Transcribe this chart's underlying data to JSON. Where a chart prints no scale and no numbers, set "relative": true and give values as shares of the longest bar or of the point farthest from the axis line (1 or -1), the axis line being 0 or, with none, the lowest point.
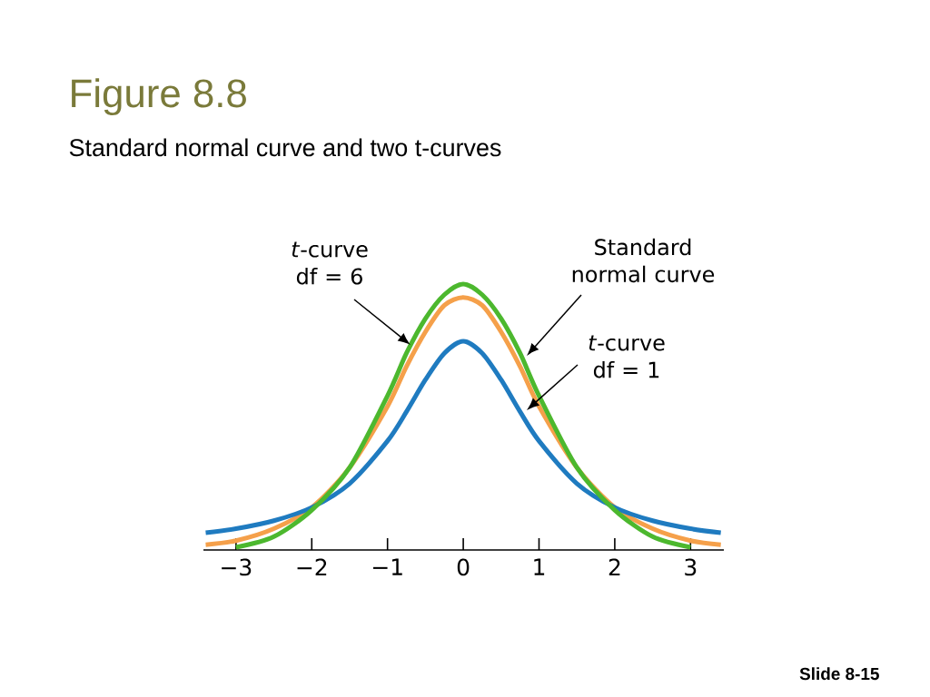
{
  "chart_data": {
    "type": "line",
    "title": "Figure 8.8",
    "subtitle": "Standard normal curve and two t-curves",
    "relative": true,
    "marker": "none",
    "xlim": [
      -3.43,
      3.44
    ],
    "xticks": [
      {
        "value": -3,
        "label": "−3"
      },
      {
        "value": -2,
        "label": "−2"
      },
      {
        "value": -1,
        "label": "−1"
      },
      0,
      1,
      2,
      3
    ],
    "series": [
      {
        "color": "#f5a04a",
        "x": [
          -3.4,
          -3,
          -2.5,
          -2,
          -1.5,
          -1,
          -0.75,
          -0.5,
          -0.25,
          0,
          0.25,
          0.5,
          0.75,
          1,
          1.5,
          2,
          2.5,
          3,
          3.4
        ],
        "values": [
          0.02,
          0.035,
          0.08,
          0.16,
          0.31,
          0.54,
          0.69,
          0.82,
          0.92,
          0.95,
          0.92,
          0.82,
          0.69,
          0.54,
          0.31,
          0.16,
          0.08,
          0.035,
          0.02
        ]
      },
      {
        "color": "#1f7bc0",
        "x": [
          -3.4,
          -3,
          -2.5,
          -2,
          -1.5,
          -1,
          -0.75,
          -0.5,
          -0.25,
          0,
          0.25,
          0.5,
          0.75,
          1,
          1.5,
          2,
          2.5,
          3,
          3.4
        ],
        "values": [
          0.065,
          0.08,
          0.11,
          0.16,
          0.25,
          0.41,
          0.52,
          0.64,
          0.74,
          0.785,
          0.74,
          0.64,
          0.52,
          0.41,
          0.25,
          0.16,
          0.11,
          0.08,
          0.065
        ]
      },
      {
        "color": "#4cb82e",
        "x": [
          -3,
          -2.5,
          -2,
          -1.5,
          -1,
          -0.75,
          -0.5,
          -0.25,
          0,
          0.25,
          0.5,
          0.75,
          1,
          1.5,
          2,
          2.5,
          3
        ],
        "values": [
          0.01,
          0.05,
          0.15,
          0.31,
          0.58,
          0.74,
          0.87,
          0.96,
          1.0,
          0.96,
          0.87,
          0.74,
          0.58,
          0.31,
          0.15,
          0.05,
          0.01
        ]
      }
    ],
    "annotations": [
      "*t*-curve df = 6",
      "Standard normal curve",
      "*t*-curve df = 1",
      "Slide 8-15"
    ]
  }
}
